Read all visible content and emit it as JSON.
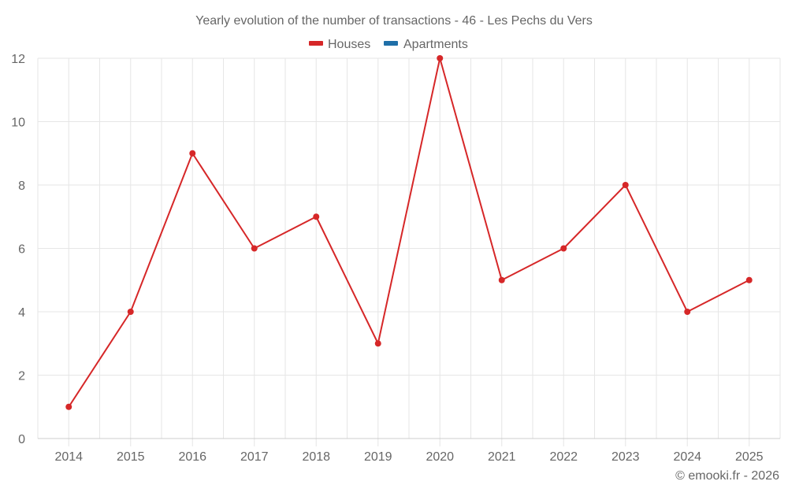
{
  "chart_data": {
    "type": "line",
    "title": "Yearly evolution of the number of transactions - 46 - Les Pechs du Vers",
    "xlabel": "",
    "ylabel": "",
    "categories": [
      "2014",
      "2015",
      "2016",
      "2017",
      "2018",
      "2019",
      "2020",
      "2021",
      "2022",
      "2023",
      "2024",
      "2025"
    ],
    "series": [
      {
        "name": "Houses",
        "color": "#d62728",
        "values": [
          1,
          4,
          9,
          6,
          7,
          3,
          12,
          5,
          6,
          8,
          4,
          5
        ]
      },
      {
        "name": "Apartments",
        "color": "#1f6fa8",
        "values": []
      }
    ],
    "ylim": [
      0,
      12
    ],
    "yticks": [
      0,
      2,
      4,
      6,
      8,
      10,
      12
    ],
    "grid": true,
    "legend_position": "top"
  },
  "footer": {
    "credit": "© emooki.fr - 2026"
  },
  "colors": {
    "grid": "#e6e6e6",
    "axis": "#cccccc",
    "text": "#666666"
  }
}
